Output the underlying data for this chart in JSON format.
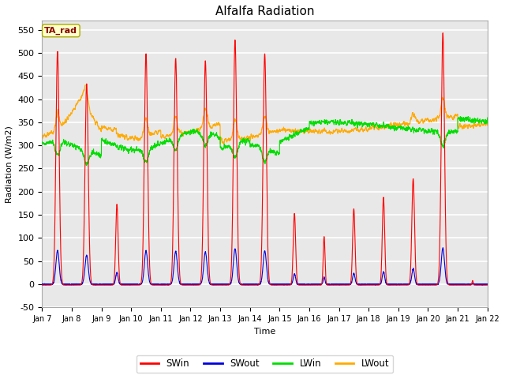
{
  "title": "Alfalfa Radiation",
  "xlabel": "Time",
  "ylabel": "Radiation (W/m2)",
  "ylim": [
    -50,
    570
  ],
  "xlim_days": [
    7,
    22
  ],
  "background_color": "#e8e8e8",
  "grid_color": "white",
  "annotation_text": "TA_rad",
  "annotation_bg": "#ffffcc",
  "annotation_border": "#aaaa00",
  "annotation_text_color": "#880000",
  "series": {
    "SWin": {
      "color": "#ff0000",
      "lw": 0.8
    },
    "SWout": {
      "color": "#0000dd",
      "lw": 0.8
    },
    "LWin": {
      "color": "#00dd00",
      "lw": 0.8
    },
    "LWout": {
      "color": "#ffaa00",
      "lw": 0.8
    }
  },
  "xtick_labels": [
    "Jan 7",
    "Jan 8",
    "Jan 9",
    "Jan 10",
    "Jan 11",
    "Jan 12",
    "Jan 13",
    "Jan 14",
    "Jan 15",
    "Jan 16",
    "Jan 17",
    "Jan 18",
    "Jan 19",
    "Jan 20",
    "Jan 21",
    "Jan 22"
  ],
  "ytick_labels": [
    "-50",
    "0",
    "50",
    "100",
    "150",
    "200",
    "250",
    "300",
    "350",
    "400",
    "450",
    "500",
    "550"
  ],
  "ytick_values": [
    -50,
    0,
    50,
    100,
    150,
    200,
    250,
    300,
    350,
    400,
    450,
    500,
    550
  ],
  "legend_entries": [
    "SWin",
    "SWout",
    "LWin",
    "LWout"
  ],
  "legend_colors": [
    "#ff0000",
    "#0000dd",
    "#00dd00",
    "#ffaa00"
  ],
  "SW_peaks": [
    505,
    435,
    175,
    500,
    490,
    485,
    530,
    500,
    155,
    105,
    165,
    190,
    230,
    545,
    10
  ],
  "SW_noon_offsets": [
    0.52,
    0.5,
    0.52,
    0.5,
    0.5,
    0.5,
    0.5,
    0.5,
    0.5,
    0.5,
    0.5,
    0.5,
    0.5,
    0.5,
    0.5
  ],
  "SW_widths": [
    0.055,
    0.055,
    0.04,
    0.055,
    0.055,
    0.055,
    0.055,
    0.055,
    0.04,
    0.03,
    0.04,
    0.04,
    0.045,
    0.055,
    0.02
  ],
  "SWout_ratio": 0.145,
  "LWin_base_early": 305,
  "LWin_base_late": 340,
  "LWout_base_early": 335,
  "LWout_base_late": 355
}
